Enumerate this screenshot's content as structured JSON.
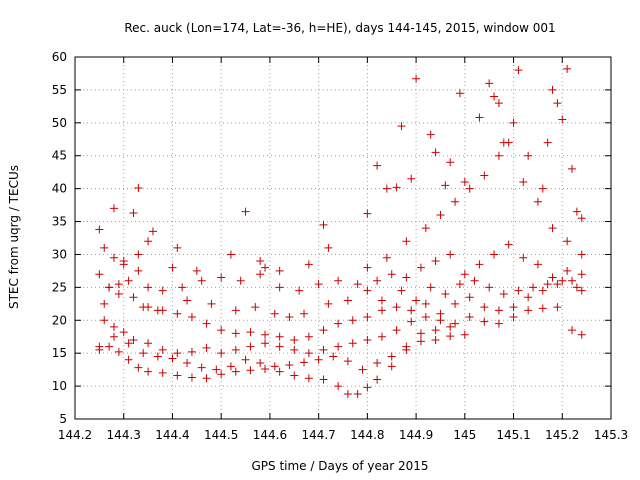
{
  "chart_data": {
    "type": "scatter",
    "title": "Rec. auck (Lon=174, Lat=-36, h=HE), days 144-145, 2015, window 001",
    "xlabel": "GPS time / Days of year 2015",
    "ylabel": "STEC from uqrg / TECUs",
    "xlim": [
      144.2,
      145.3
    ],
    "ylim": [
      5,
      60
    ],
    "xticks": [
      144.2,
      144.3,
      144.4,
      144.5,
      144.6,
      144.7,
      144.8,
      144.9,
      145.0,
      145.1,
      145.2,
      145.3
    ],
    "xtick_labels": [
      "144.2",
      "144.3",
      "144.4",
      "144.5",
      "144.6",
      "144.7",
      "144.8",
      "144.9",
      "145",
      "145.1",
      "145.2",
      "145.3"
    ],
    "yticks": [
      5,
      10,
      15,
      20,
      25,
      30,
      35,
      40,
      45,
      50,
      55,
      60
    ],
    "ytick_labels": [
      "5",
      "10",
      "15",
      "20",
      "25",
      "30",
      "35",
      "40",
      "45",
      "50",
      "55",
      "60"
    ],
    "grid": true,
    "marker": "+",
    "color": "#cc0000",
    "series": [
      {
        "points": [
          [
            144.25,
            15.5
          ],
          [
            144.27,
            16.0
          ],
          [
            144.29,
            15.2
          ],
          [
            144.31,
            14.0
          ],
          [
            144.33,
            12.8
          ],
          [
            144.35,
            12.2
          ],
          [
            144.38,
            12.0
          ],
          [
            144.41,
            11.6
          ],
          [
            144.44,
            11.3
          ],
          [
            144.47,
            11.2
          ],
          [
            144.5,
            11.8
          ],
          [
            144.53,
            12.2
          ],
          [
            144.56,
            12.4
          ],
          [
            144.59,
            12.6
          ],
          [
            144.62,
            12.2
          ],
          [
            144.65,
            11.6
          ],
          [
            144.68,
            11.2
          ],
          [
            144.71,
            11.0
          ],
          [
            144.74,
            10.0
          ],
          [
            144.76,
            8.8
          ],
          [
            144.78,
            8.8
          ],
          [
            144.8,
            9.8
          ],
          [
            144.82,
            11.0
          ],
          [
            144.85,
            13.0
          ],
          [
            144.88,
            15.5
          ],
          [
            144.91,
            16.8
          ],
          [
            144.94,
            17.0
          ],
          [
            144.97,
            17.6
          ],
          [
            145.0,
            17.8
          ]
        ]
      },
      {
        "points": [
          [
            144.25,
            16.0
          ],
          [
            144.28,
            17.5
          ],
          [
            144.31,
            16.5
          ],
          [
            144.34,
            15.0
          ],
          [
            144.37,
            14.5
          ],
          [
            144.4,
            14.2
          ],
          [
            144.43,
            13.5
          ],
          [
            144.46,
            12.8
          ],
          [
            144.49,
            12.5
          ],
          [
            144.52,
            13.0
          ],
          [
            144.55,
            14.0
          ],
          [
            144.58,
            13.5
          ],
          [
            144.61,
            13.0
          ],
          [
            144.64,
            13.2
          ],
          [
            144.67,
            13.6
          ],
          [
            144.7,
            14.0
          ],
          [
            144.73,
            14.5
          ],
          [
            144.76,
            13.8
          ],
          [
            144.79,
            12.5
          ],
          [
            144.82,
            13.5
          ],
          [
            144.85,
            14.5
          ],
          [
            144.88,
            16.0
          ],
          [
            144.91,
            18.0
          ],
          [
            144.94,
            18.5
          ],
          [
            144.97,
            19.0
          ]
        ]
      },
      {
        "points": [
          [
            144.26,
            20.0
          ],
          [
            144.28,
            19.0
          ],
          [
            144.3,
            18.2
          ],
          [
            144.32,
            17.0
          ],
          [
            144.35,
            16.5
          ],
          [
            144.38,
            15.5
          ],
          [
            144.41,
            15.0
          ],
          [
            144.44,
            15.2
          ],
          [
            144.47,
            15.8
          ],
          [
            144.5,
            15.0
          ],
          [
            144.53,
            15.5
          ],
          [
            144.56,
            16.0
          ],
          [
            144.59,
            16.5
          ],
          [
            144.62,
            16.0
          ],
          [
            144.65,
            15.5
          ],
          [
            144.68,
            15.0
          ],
          [
            144.71,
            15.5
          ],
          [
            144.74,
            16.0
          ],
          [
            144.77,
            16.5
          ],
          [
            144.8,
            17.0
          ],
          [
            144.83,
            17.5
          ],
          [
            144.86,
            18.5
          ],
          [
            144.89,
            19.8
          ],
          [
            144.92,
            20.5
          ],
          [
            144.95,
            20.0
          ],
          [
            144.98,
            19.5
          ],
          [
            145.01,
            20.5
          ],
          [
            145.04,
            19.8
          ],
          [
            145.07,
            19.5
          ],
          [
            145.1,
            20.5
          ],
          [
            145.13,
            21.5
          ],
          [
            145.16,
            21.8
          ],
          [
            145.19,
            22.0
          ],
          [
            145.22,
            18.5
          ],
          [
            145.24,
            17.8
          ]
        ]
      },
      {
        "points": [
          [
            144.26,
            22.5
          ],
          [
            144.29,
            24.0
          ],
          [
            144.32,
            23.5
          ],
          [
            144.35,
            22.0
          ],
          [
            144.38,
            21.5
          ],
          [
            144.41,
            21.0
          ],
          [
            144.44,
            20.5
          ],
          [
            144.47,
            19.5
          ],
          [
            144.5,
            18.5
          ],
          [
            144.53,
            18.0
          ],
          [
            144.56,
            18.2
          ],
          [
            144.59,
            17.8
          ],
          [
            144.62,
            17.5
          ],
          [
            144.65,
            17.0
          ],
          [
            144.68,
            17.5
          ],
          [
            144.71,
            18.5
          ],
          [
            144.74,
            19.5
          ],
          [
            144.77,
            20.0
          ],
          [
            144.8,
            20.5
          ],
          [
            144.83,
            21.5
          ],
          [
            144.86,
            22.0
          ],
          [
            144.89,
            21.5
          ],
          [
            144.92,
            22.5
          ],
          [
            144.95,
            21.0
          ],
          [
            144.98,
            22.5
          ],
          [
            145.01,
            23.5
          ],
          [
            145.04,
            22.0
          ],
          [
            145.07,
            21.5
          ],
          [
            145.1,
            22.0
          ],
          [
            145.13,
            23.5
          ],
          [
            145.16,
            24.5
          ],
          [
            145.19,
            25.5
          ],
          [
            145.22,
            26.0
          ],
          [
            145.24,
            24.5
          ]
        ]
      },
      {
        "points": [
          [
            144.25,
            27.0
          ],
          [
            144.27,
            25.0
          ],
          [
            144.29,
            25.5
          ],
          [
            144.31,
            26.0
          ],
          [
            144.33,
            27.5
          ],
          [
            144.35,
            25.0
          ],
          [
            144.38,
            24.5
          ],
          [
            144.42,
            25.0
          ],
          [
            144.46,
            26.0
          ],
          [
            144.5,
            26.5
          ],
          [
            144.54,
            26.0
          ],
          [
            144.58,
            27.0
          ],
          [
            144.62,
            25.0
          ],
          [
            144.66,
            24.5
          ],
          [
            144.7,
            25.5
          ],
          [
            144.74,
            26.0
          ],
          [
            144.78,
            25.5
          ],
          [
            144.82,
            26.0
          ],
          [
            144.85,
            27.0
          ],
          [
            144.88,
            26.5
          ],
          [
            144.91,
            28.0
          ],
          [
            144.94,
            29.0
          ],
          [
            144.97,
            30.0
          ],
          [
            145.0,
            27.0
          ],
          [
            145.03,
            28.5
          ],
          [
            145.06,
            30.0
          ],
          [
            145.09,
            31.5
          ],
          [
            145.12,
            29.5
          ],
          [
            145.15,
            28.5
          ],
          [
            145.18,
            26.5
          ],
          [
            145.21,
            27.5
          ],
          [
            145.24,
            27.0
          ]
        ]
      },
      {
        "points": [
          [
            144.26,
            31.0
          ],
          [
            144.28,
            29.5
          ],
          [
            144.3,
            29.0
          ],
          [
            144.33,
            30.0
          ],
          [
            144.35,
            32.0
          ],
          [
            144.4,
            28.0
          ],
          [
            144.45,
            27.5
          ],
          [
            144.52,
            30.0
          ],
          [
            144.58,
            29.0
          ],
          [
            144.62,
            27.5
          ],
          [
            144.68,
            28.5
          ],
          [
            144.72,
            31.0
          ],
          [
            144.8,
            28.0
          ],
          [
            144.84,
            29.5
          ],
          [
            144.88,
            32.0
          ],
          [
            144.92,
            34.0
          ],
          [
            144.95,
            36.0
          ],
          [
            144.98,
            38.0
          ],
          [
            145.01,
            40.0
          ],
          [
            145.04,
            42.0
          ],
          [
            145.07,
            45.0
          ],
          [
            145.09,
            47.0
          ],
          [
            145.12,
            41.0
          ],
          [
            145.15,
            38.0
          ],
          [
            145.18,
            34.0
          ],
          [
            145.21,
            32.0
          ],
          [
            145.24,
            30.0
          ]
        ]
      },
      {
        "points": [
          [
            144.25,
            33.8
          ],
          [
            144.28,
            37.0
          ],
          [
            144.32,
            36.3
          ],
          [
            144.33,
            40.1
          ],
          [
            144.36,
            33.5
          ],
          [
            144.41,
            31.0
          ],
          [
            144.55,
            36.5
          ],
          [
            144.59,
            28.0
          ],
          [
            144.71,
            34.5
          ],
          [
            144.8,
            36.2
          ],
          [
            144.82,
            43.5
          ],
          [
            144.84,
            40.0
          ],
          [
            144.86,
            40.2
          ],
          [
            144.87,
            49.5
          ],
          [
            144.89,
            41.5
          ],
          [
            144.9,
            56.7
          ],
          [
            144.93,
            48.2
          ],
          [
            144.94,
            45.5
          ],
          [
            144.96,
            40.5
          ],
          [
            144.97,
            44.0
          ],
          [
            144.99,
            54.5
          ],
          [
            145.0,
            41.0
          ],
          [
            145.03,
            50.8
          ],
          [
            145.05,
            56.0
          ],
          [
            145.06,
            54.0
          ],
          [
            145.07,
            53.0
          ],
          [
            145.08,
            47.0
          ],
          [
            145.1,
            50.0
          ],
          [
            145.11,
            58.0
          ],
          [
            145.13,
            45.0
          ],
          [
            145.16,
            40.0
          ],
          [
            145.17,
            47.0
          ],
          [
            145.18,
            55.0
          ],
          [
            145.19,
            53.0
          ],
          [
            145.2,
            50.5
          ],
          [
            145.21,
            58.2
          ],
          [
            145.22,
            43.0
          ],
          [
            145.23,
            36.5
          ],
          [
            145.24,
            35.5
          ]
        ]
      },
      {
        "points": [
          [
            144.27,
            25.0
          ],
          [
            144.3,
            28.5
          ],
          [
            144.34,
            22.0
          ],
          [
            144.37,
            21.5
          ],
          [
            144.43,
            23.0
          ],
          [
            144.48,
            22.5
          ],
          [
            144.53,
            21.5
          ],
          [
            144.57,
            22.0
          ],
          [
            144.61,
            21.0
          ],
          [
            144.64,
            20.5
          ],
          [
            144.67,
            21.0
          ],
          [
            144.72,
            22.5
          ],
          [
            144.76,
            23.0
          ],
          [
            144.8,
            24.5
          ],
          [
            144.83,
            23.0
          ],
          [
            144.87,
            24.5
          ],
          [
            144.9,
            23.0
          ],
          [
            144.93,
            25.0
          ],
          [
            144.96,
            24.0
          ],
          [
            144.99,
            25.5
          ],
          [
            145.02,
            26.0
          ],
          [
            145.05,
            25.0
          ],
          [
            145.08,
            24.0
          ],
          [
            145.11,
            24.5
          ],
          [
            145.14,
            25.0
          ],
          [
            145.17,
            25.5
          ],
          [
            145.2,
            26.0
          ],
          [
            145.23,
            25.0
          ]
        ]
      }
    ]
  }
}
